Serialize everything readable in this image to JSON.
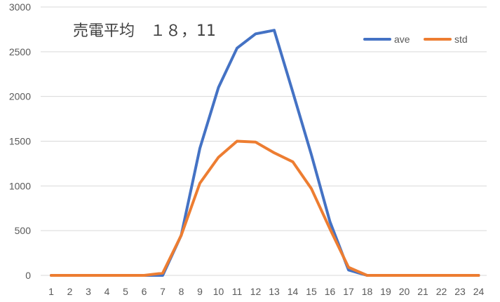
{
  "chart_data": {
    "type": "line",
    "title": "売電平均　１８，11",
    "xlabel": "",
    "ylabel": "",
    "categories": [
      "1",
      "2",
      "3",
      "4",
      "5",
      "6",
      "7",
      "8",
      "9",
      "10",
      "11",
      "12",
      "13",
      "14",
      "15",
      "16",
      "17",
      "18",
      "19",
      "20",
      "21",
      "22",
      "23",
      "24"
    ],
    "ylim": [
      0,
      3000
    ],
    "yticks": [
      0,
      500,
      1000,
      1500,
      2000,
      2500,
      3000
    ],
    "grid": true,
    "legend_position": "top-right",
    "series": [
      {
        "name": "ave",
        "color": "#4472C4",
        "values": [
          0,
          0,
          0,
          0,
          0,
          0,
          0,
          450,
          1420,
          2100,
          2540,
          2700,
          2740,
          2050,
          1350,
          600,
          60,
          0,
          0,
          0,
          0,
          0,
          0,
          0
        ]
      },
      {
        "name": "std",
        "color": "#ED7D31",
        "values": [
          0,
          0,
          0,
          0,
          0,
          0,
          25,
          450,
          1030,
          1320,
          1500,
          1490,
          1370,
          1270,
          970,
          520,
          90,
          0,
          0,
          0,
          0,
          0,
          0,
          0
        ]
      }
    ]
  }
}
